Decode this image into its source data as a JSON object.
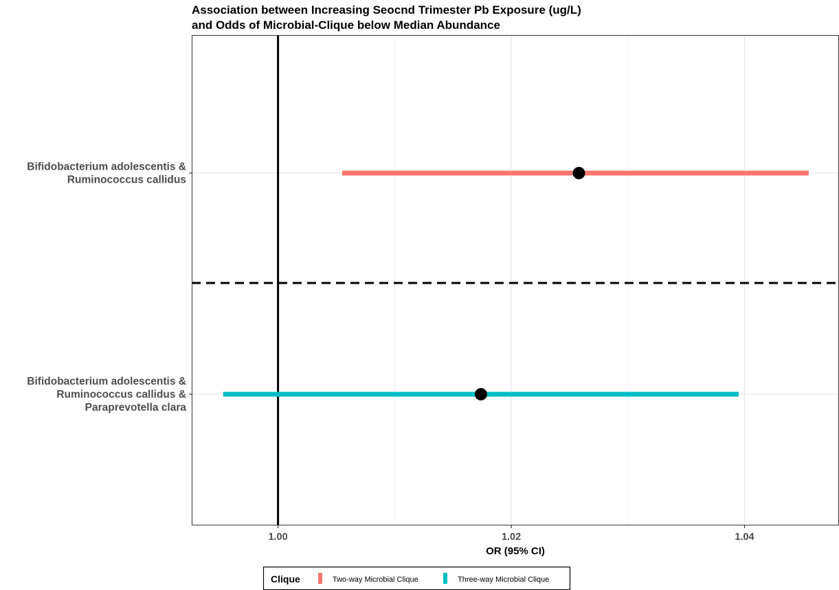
{
  "chart_data": {
    "type": "forest",
    "title_lines": [
      "Association between Increasing Seocnd Trimester Pb Exposure (ug/L)",
      "and Odds of Microbial-Clique below Median Abundance"
    ],
    "xlabel": "OR (95% CI)",
    "xlim": [
      0.9926,
      1.0481
    ],
    "xticks": [
      "1.00",
      "1.02",
      "1.04"
    ],
    "xtick_values": [
      1.0,
      1.02,
      1.04
    ],
    "reference_line": 1.0,
    "grid": true,
    "categories": [
      {
        "label_lines": [
          "Bifidobacterium adolescentis &",
          "Ruminococcus callidus"
        ],
        "estimate": 1.0258,
        "ci_low": 1.0055,
        "ci_high": 1.0455,
        "series": "Two-way Microbial Clique"
      },
      {
        "label_lines": [
          "Bifidobacterium adolescentis &",
          "Ruminococcus callidus &",
          "Paraprevotella clara"
        ],
        "estimate": 1.0174,
        "ci_low": 0.9953,
        "ci_high": 1.0395,
        "series": "Three-way Microbial Clique"
      }
    ],
    "series": [
      {
        "name": "Two-way Microbial Clique",
        "color": "#F8766D"
      },
      {
        "name": "Three-way Microbial Clique",
        "color": "#00BFC4"
      }
    ],
    "legend": {
      "title": "Clique",
      "placement": "bottom"
    }
  }
}
